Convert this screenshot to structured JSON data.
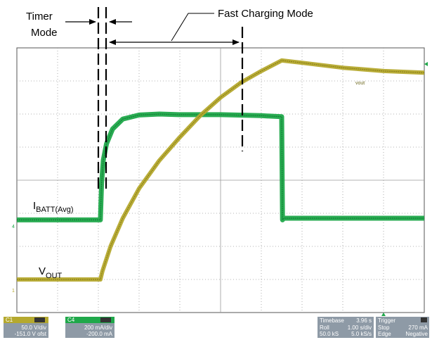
{
  "chart_data": {
    "type": "line",
    "title": "",
    "xlabel": "",
    "ylabel": "",
    "grid": true,
    "x_divisions": 10,
    "y_divisions": 8,
    "xlim": [
      0,
      10
    ],
    "ylim": [
      0,
      8
    ],
    "series": [
      {
        "name": "IBATT(Avg)",
        "color": "#1fa84a",
        "x": [
          0,
          2.05,
          2.08,
          2.12,
          2.2,
          2.35,
          2.6,
          3.0,
          3.5,
          4.0,
          5.0,
          6.0,
          6.5,
          6.52,
          6.55,
          10
        ],
        "y": [
          2.8,
          2.8,
          3.9,
          4.6,
          5.1,
          5.55,
          5.85,
          5.97,
          6.0,
          5.98,
          5.98,
          5.95,
          5.92,
          2.8,
          2.85,
          2.85
        ]
      },
      {
        "name": "VOUT",
        "color": "#b5a92e",
        "x": [
          0,
          2.05,
          2.1,
          2.3,
          2.6,
          3.0,
          3.5,
          4.0,
          4.5,
          5.0,
          5.5,
          6.0,
          6.5,
          7.0,
          8.0,
          9.0,
          10
        ],
        "y": [
          1.0,
          1.0,
          1.25,
          2.0,
          2.85,
          3.75,
          4.6,
          5.3,
          5.95,
          6.5,
          6.95,
          7.3,
          7.62,
          7.55,
          7.4,
          7.3,
          7.25
        ]
      }
    ]
  },
  "annotations": {
    "timer_mode_line1": "Timer",
    "timer_mode_line2": "Mode",
    "fast_charging": "Fast Charging Mode",
    "ibatt_main": "I",
    "ibatt_sub": "BATT(Avg)",
    "vout_main": "V",
    "vout_sub": "OUT",
    "trace_tag": "vout"
  },
  "channel_markers": {
    "ch1": "1",
    "ch4": "4"
  },
  "status_bar": {
    "c1": {
      "label": "C1",
      "scale": "50.0 V/div",
      "offset": "-151.0 V ofst"
    },
    "c4": {
      "label": "C4",
      "scale": "200 mA/div",
      "offset": "-200.0 mA"
    },
    "timebase": {
      "label": "Timebase",
      "value": "3.96 s",
      "mode": "Roll",
      "per_div": "1.00 s/div",
      "samples": "50.0 kS",
      "rate": "5.0 kS/s"
    },
    "trigger": {
      "label": "Trigger",
      "state": "Stop",
      "level": "270 mA",
      "type": "Edge",
      "slope": "Negative"
    }
  },
  "colors": {
    "ch1": "#b5a92e",
    "ch4": "#1fa84a",
    "grid": "#9a9a9a",
    "status_bg": "#8e9aa6"
  }
}
